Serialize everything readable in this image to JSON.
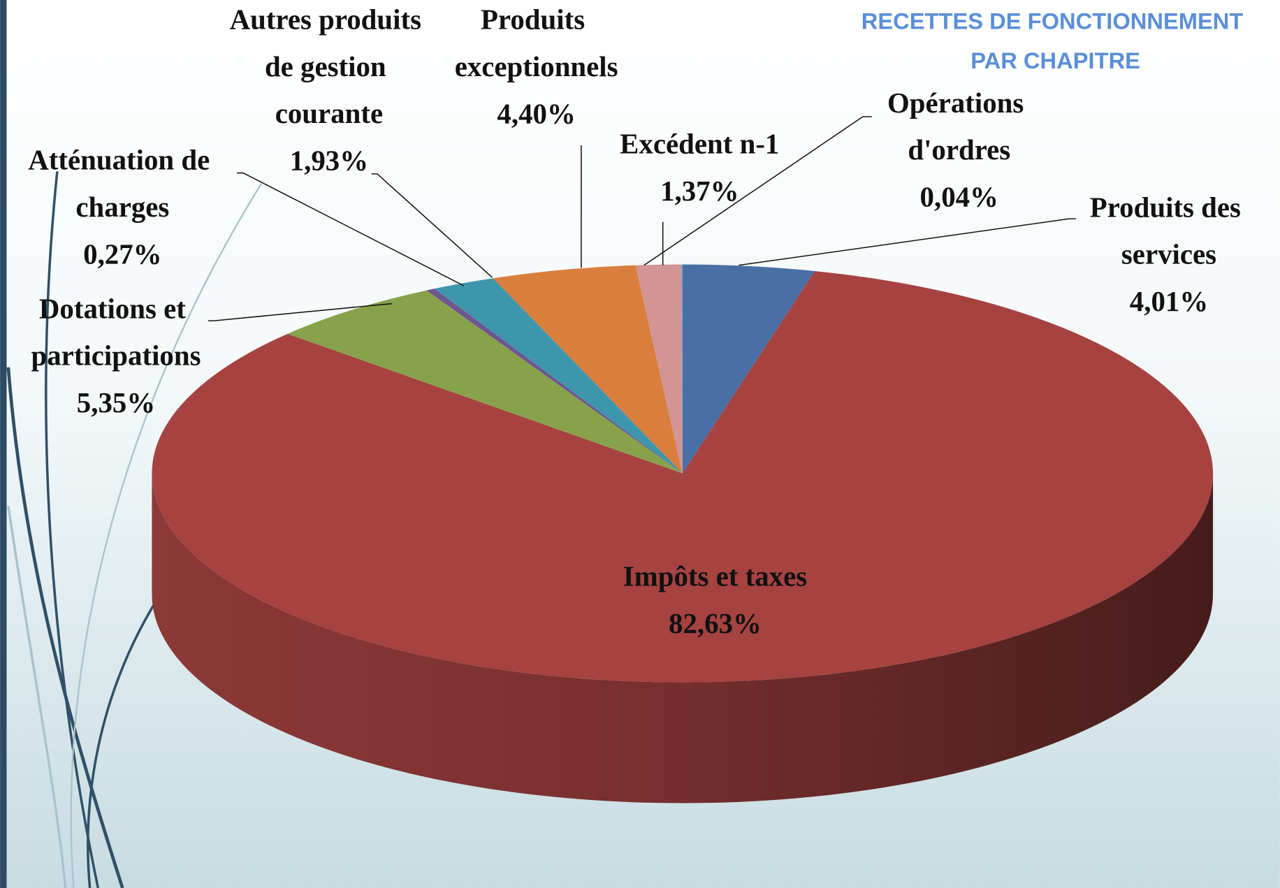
{
  "chart_data": {
    "type": "pie3d",
    "title": "RECETTES DE FONCTIONNEMENT PAR CHAPITRE",
    "categories": [
      "Produits des services",
      "Impôts et taxes",
      "Dotations et participations",
      "Atténuation de charges",
      "Autres produits de gestion courante",
      "Produits exceptionnels",
      "Excédent n-1",
      "Opérations d'ordres"
    ],
    "values": [
      4.01,
      82.63,
      5.35,
      0.27,
      1.93,
      4.4,
      1.37,
      0.04
    ],
    "value_labels": [
      "4,01%",
      "82,63%",
      "5,35%",
      "0,27%",
      "1,93%",
      "4,40%",
      "1,37%",
      "0,04%"
    ],
    "colors": [
      "#4a6fa5",
      "#a64341",
      "#88a24b",
      "#6e5790",
      "#3e96ad",
      "#d97e3d",
      "#d39494",
      "#7f9fca"
    ]
  }
}
